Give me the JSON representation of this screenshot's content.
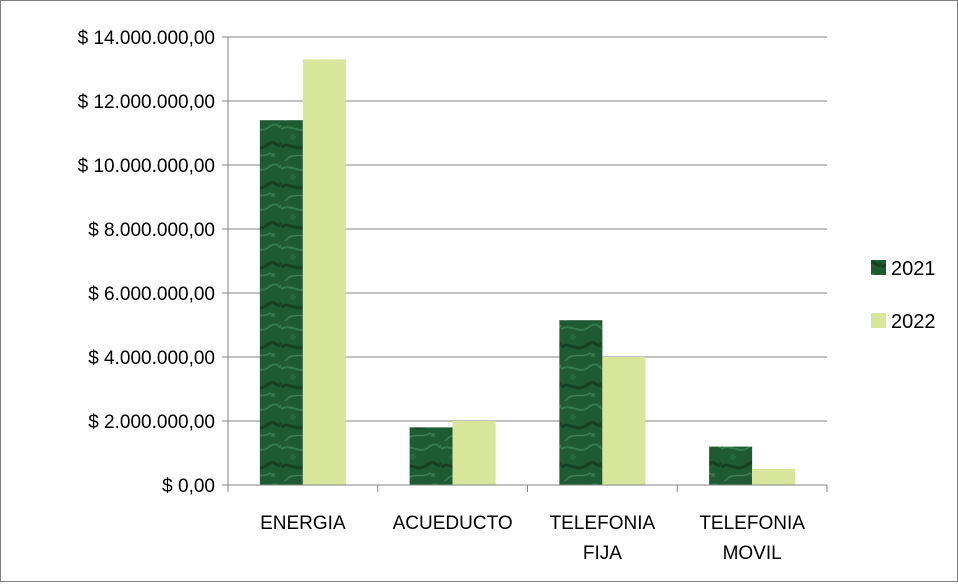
{
  "chart_data": {
    "type": "bar",
    "categories": [
      [
        "ENERGIA"
      ],
      [
        "ACUEDUCTO"
      ],
      [
        "TELEFONIA",
        "FIJA"
      ],
      [
        "TELEFONIA",
        "MOVIL"
      ]
    ],
    "series": [
      {
        "name": "2021",
        "values": [
          11400000,
          1800000,
          5150000,
          1200000
        ],
        "color": "#1e5a32"
      },
      {
        "name": "2022",
        "values": [
          13300000,
          2000000,
          4000000,
          500000
        ],
        "color": "#d7e69a"
      }
    ],
    "ylim": [
      0,
      14000000
    ],
    "yticks": [
      0,
      2000000,
      4000000,
      6000000,
      8000000,
      10000000,
      12000000,
      14000000
    ],
    "ytick_labels": [
      "$ 0,00",
      "$ 2.000.000,00",
      "$ 4.000.000,00",
      "$ 6.000.000,00",
      "$ 8.000.000,00",
      "$ 10.000.000,00",
      "$ 12.000.000,00",
      "$ 14.000.000,00"
    ],
    "grid": true,
    "legend": "right"
  }
}
